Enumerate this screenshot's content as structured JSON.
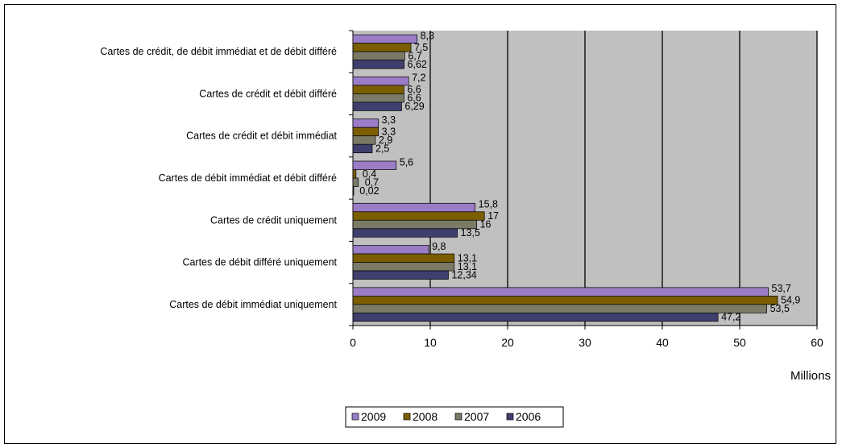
{
  "chart_data": {
    "type": "bar",
    "orientation": "horizontal",
    "categories": [
      "Cartes de crédit, de débit immédiat et de débit différé",
      "Cartes de crédit et débit différé",
      "Cartes de crédit et débit immédiat",
      "Cartes de débit immédiat et débit différé",
      "Cartes de crédit uniquement",
      "Cartes de débit différé uniquement",
      "Cartes de débit immédiat uniquement"
    ],
    "series": [
      {
        "name": "2009",
        "color": "#9B7CC6",
        "values": [
          8.3,
          7.2,
          3.3,
          5.6,
          15.8,
          9.8,
          53.7
        ],
        "labels": [
          "8,3",
          "7,2",
          "3,3",
          "5,6",
          "15,8",
          "9,8",
          "53,7"
        ]
      },
      {
        "name": "2008",
        "color": "#7A5E00",
        "values": [
          7.5,
          6.6,
          3.3,
          0.4,
          17,
          13.1,
          54.9
        ],
        "labels": [
          "7,5",
          "6,6",
          "3,3",
          "0,4",
          "17",
          "13,1",
          "54,9"
        ]
      },
      {
        "name": "2007",
        "color": "#7A7A66",
        "values": [
          6.7,
          6.6,
          2.9,
          0.7,
          16,
          13.1,
          53.5
        ],
        "labels": [
          "6,7",
          "6,6",
          "2,9",
          "0,7",
          "16",
          "13,1",
          "53,5"
        ]
      },
      {
        "name": "2006",
        "color": "#3F3F6E",
        "values": [
          6.62,
          6.29,
          2.5,
          0.02,
          13.5,
          12.34,
          47.2
        ],
        "labels": [
          "6,62",
          "6,29",
          "2,5",
          "0,02",
          "13,5",
          "12,34",
          "47,2"
        ]
      }
    ],
    "xlim": [
      0,
      60
    ],
    "ticks": [
      "0",
      "10",
      "20",
      "30",
      "40",
      "50",
      "60"
    ],
    "xlabel": "Millions",
    "grid": true,
    "plot_background": "#C0C0C0",
    "legend_position": "bottom",
    "legend_order": [
      "2009",
      "2008",
      "2007",
      "2006"
    ]
  }
}
